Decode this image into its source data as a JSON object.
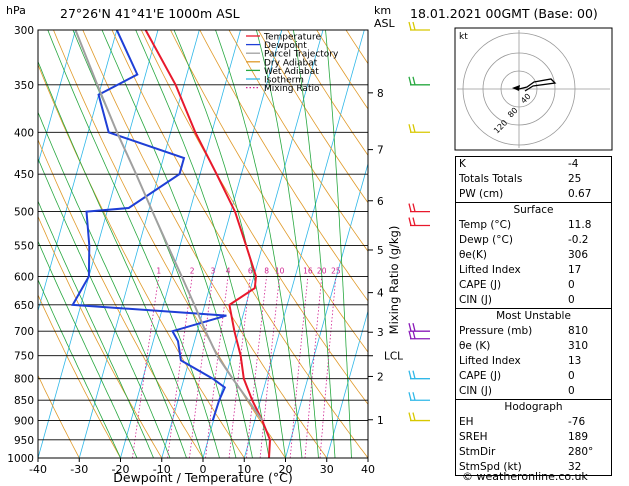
{
  "header": {
    "location": "27°26'N  41°41'E  1000m  ASL",
    "date": "18.01.2021  00GMT  (Base: 00)",
    "hpa_label": "hPa",
    "km_label": "km",
    "asl_label": "ASL"
  },
  "footer": "© weatheronline.co.uk",
  "colors": {
    "temperature": "#e8192c",
    "dewpoint": "#1f3fd6",
    "parcel": "#a0a0a0",
    "dry_adiabat": "#e09a2a",
    "wet_adiabat": "#28a840",
    "isotherm": "#30b8e8",
    "mixing_ratio": "#d02090"
  },
  "chart_data": {
    "type": "line",
    "xlabel": "Dewpoint / Temperature (°C)",
    "ylabel": "Mixing Ratio (g/kg)",
    "xlim": [
      -40,
      40
    ],
    "ylim": [
      1000,
      300
    ],
    "x_ticks": [
      "-40",
      "-30",
      "-20",
      "-10",
      "0",
      "10",
      "20",
      "30",
      "40"
    ],
    "pressure_ticks": [
      "300",
      "350",
      "400",
      "450",
      "500",
      "550",
      "600",
      "650",
      "700",
      "750",
      "800",
      "850",
      "900",
      "950",
      "1000"
    ],
    "km_ticks": [
      {
        "label": "8",
        "p": 358
      },
      {
        "label": "7",
        "p": 420
      },
      {
        "label": "6",
        "p": 485
      },
      {
        "label": "5",
        "p": 557
      },
      {
        "label": "4",
        "p": 628
      },
      {
        "label": "3",
        "p": 702
      },
      {
        "label": "2",
        "p": 795
      },
      {
        "label": "1",
        "p": 898
      }
    ],
    "lcl_label": "LCL",
    "lcl_p": 750,
    "mixing_ratio_labels": [
      "1",
      "2",
      "3",
      "4",
      "6",
      "8",
      "10",
      "16",
      "20",
      "25"
    ],
    "legend": [
      "Temperature",
      "Dewpoint",
      "Parcel Trajectory",
      "Dry Adiabat",
      "Wet Adiabat",
      "Isotherm",
      "Mixing Ratio"
    ],
    "series": [
      {
        "name": "Temperature",
        "points": [
          [
            1000,
            16
          ],
          [
            950,
            15
          ],
          [
            900,
            11.8
          ],
          [
            850,
            8
          ],
          [
            800,
            4.5
          ],
          [
            750,
            2.2
          ],
          [
            700,
            -1
          ],
          [
            650,
            -4
          ],
          [
            620,
            1
          ],
          [
            600,
            0.5
          ],
          [
            550,
            -4
          ],
          [
            500,
            -9
          ],
          [
            450,
            -16
          ],
          [
            400,
            -24
          ],
          [
            350,
            -32
          ],
          [
            300,
            -43
          ]
        ]
      },
      {
        "name": "Dewpoint",
        "points": [
          [
            900,
            -0.2
          ],
          [
            850,
            0
          ],
          [
            820,
            0.5
          ],
          [
            800,
            -3
          ],
          [
            760,
            -12
          ],
          [
            720,
            -14
          ],
          [
            700,
            -16
          ],
          [
            670,
            -4
          ],
          [
            650,
            -42
          ],
          [
            600,
            -40
          ],
          [
            550,
            -42
          ],
          [
            500,
            -45
          ],
          [
            495,
            -35
          ],
          [
            450,
            -25
          ],
          [
            430,
            -25
          ],
          [
            400,
            -45
          ],
          [
            360,
            -50
          ],
          [
            340,
            -42
          ],
          [
            300,
            -50
          ]
        ]
      },
      {
        "name": "Parcel Trajectory",
        "points": [
          [
            900,
            11.8
          ],
          [
            850,
            7
          ],
          [
            800,
            1.8
          ],
          [
            750,
            -3.5
          ],
          [
            700,
            -8
          ],
          [
            650,
            -12.5
          ],
          [
            600,
            -17.5
          ],
          [
            550,
            -23
          ],
          [
            500,
            -29
          ],
          [
            450,
            -35.5
          ],
          [
            400,
            -43
          ],
          [
            350,
            -51
          ],
          [
            300,
            -60
          ]
        ]
      }
    ]
  },
  "hodograph": {
    "label": "kt",
    "ring_labels": [
      "40",
      "80",
      "120"
    ]
  },
  "indices": [
    {
      "label": "K",
      "value": "-4"
    },
    {
      "label": "Totals Totals",
      "value": "25"
    },
    {
      "label": "PW (cm)",
      "value": "0.67"
    }
  ],
  "surface": {
    "title": "Surface",
    "rows": [
      {
        "label": "Temp (°C)",
        "value": "11.8"
      },
      {
        "label": "Dewp (°C)",
        "value": "-0.2"
      },
      {
        "label": "θe(K)",
        "value": "306"
      },
      {
        "label": "Lifted Index",
        "value": "17"
      },
      {
        "label": "CAPE (J)",
        "value": "0"
      },
      {
        "label": "CIN (J)",
        "value": "0"
      }
    ]
  },
  "most_unstable": {
    "title": "Most Unstable",
    "rows": [
      {
        "label": "Pressure (mb)",
        "value": "810"
      },
      {
        "label": "θe (K)",
        "value": "310"
      },
      {
        "label": "Lifted Index",
        "value": "13"
      },
      {
        "label": "CAPE (J)",
        "value": "0"
      },
      {
        "label": "CIN (J)",
        "value": "0"
      }
    ]
  },
  "hodograph_table": {
    "title": "Hodograph",
    "rows": [
      {
        "label": "EH",
        "value": "-76"
      },
      {
        "label": "SREH",
        "value": "189"
      },
      {
        "label": "StmDir",
        "value": "280°"
      },
      {
        "label": "StmSpd (kt)",
        "value": "32"
      }
    ]
  }
}
